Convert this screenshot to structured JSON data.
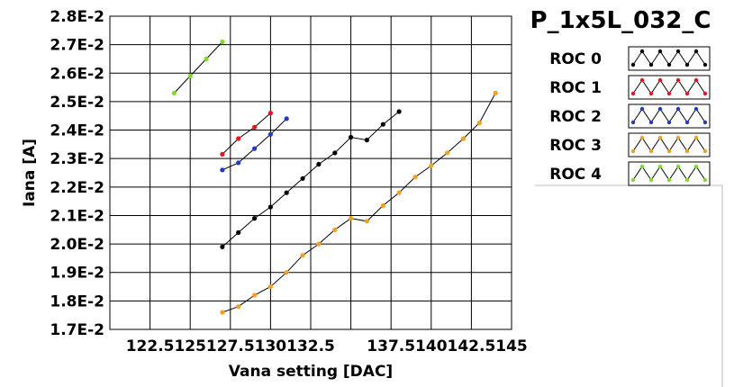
{
  "chart_data": {
    "type": "line",
    "title": "P_1x5L_032_C",
    "xlabel": "Vana setting [DAC]",
    "ylabel": "Iana [A]",
    "xlim": [
      120,
      145
    ],
    "ylim": [
      0.017,
      0.028
    ],
    "x_tick_labels": [
      "122.5",
      "125",
      "127.5",
      "130",
      "132.5",
      "",
      "137.5",
      "140",
      "142.5",
      "145"
    ],
    "y_tick_labels": [
      "1.7E-2",
      "1.8E-2",
      "1.9E-2",
      "2.0E-2",
      "2.1E-2",
      "2.2E-2",
      "2.3E-2",
      "2.4E-2",
      "2.5E-2",
      "2.6E-2",
      "2.7E-2",
      "2.8E-2"
    ],
    "grid": true,
    "legend_position": "right",
    "series": [
      {
        "name": "ROC 0",
        "color": "#000000",
        "points": [
          [
            127,
            0.0199
          ],
          [
            128,
            0.0204
          ],
          [
            129,
            0.0209
          ],
          [
            130,
            0.0213
          ],
          [
            131,
            0.0218
          ],
          [
            132,
            0.0223
          ],
          [
            133,
            0.0228
          ],
          [
            134,
            0.0232
          ],
          [
            135,
            0.02375
          ],
          [
            136,
            0.02365
          ],
          [
            137,
            0.0242
          ],
          [
            138,
            0.02465
          ]
        ]
      },
      {
        "name": "ROC 1",
        "color": "#e8141e",
        "points": [
          [
            127,
            0.02315
          ],
          [
            128,
            0.0237
          ],
          [
            129,
            0.0241
          ],
          [
            130,
            0.0246
          ]
        ]
      },
      {
        "name": "ROC 2",
        "color": "#1e3cc8",
        "points": [
          [
            127,
            0.0226
          ],
          [
            128,
            0.02285
          ],
          [
            129,
            0.02335
          ],
          [
            130,
            0.02385
          ],
          [
            131,
            0.0244
          ]
        ]
      },
      {
        "name": "ROC 3",
        "color": "#f5a01e",
        "points": [
          [
            127,
            0.0176
          ],
          [
            128,
            0.0178
          ],
          [
            129,
            0.0182
          ],
          [
            130,
            0.0185
          ],
          [
            131,
            0.019
          ],
          [
            132,
            0.0196
          ],
          [
            133,
            0.02
          ],
          [
            134,
            0.0205
          ],
          [
            135,
            0.0209
          ],
          [
            136,
            0.0208
          ],
          [
            137,
            0.02135
          ],
          [
            138,
            0.0218
          ],
          [
            139,
            0.02235
          ],
          [
            140,
            0.02275
          ],
          [
            141,
            0.0232
          ],
          [
            142,
            0.0237
          ],
          [
            143,
            0.02425
          ],
          [
            144,
            0.0253
          ]
        ]
      },
      {
        "name": "ROC 4",
        "color": "#7fdc28",
        "points": [
          [
            124,
            0.0253
          ],
          [
            125,
            0.0259
          ],
          [
            126,
            0.0265
          ],
          [
            127,
            0.0271
          ]
        ]
      }
    ]
  }
}
